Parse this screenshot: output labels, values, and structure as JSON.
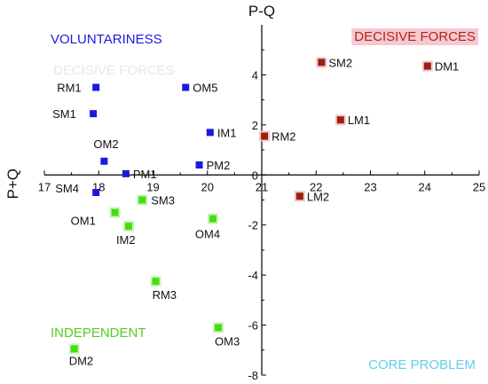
{
  "chart_data": {
    "type": "scatter",
    "xlabel": "P-Q",
    "ylabel": "P+Q",
    "xlim": [
      17,
      25
    ],
    "ylim": [
      -8,
      6
    ],
    "xticks": [
      17,
      18,
      19,
      20,
      21,
      22,
      23,
      24,
      25
    ],
    "yticks": [
      -8,
      -6,
      -4,
      -2,
      0,
      2,
      4
    ],
    "origin": [
      21,
      0
    ],
    "grid": false,
    "quadrants": [
      {
        "label": "VOLUNTARINESS",
        "position": "top-left",
        "color": "#1a1adc",
        "background": "#ffffff"
      },
      {
        "label": "DECISIVE FORCES",
        "position": "top-right",
        "color": "#b02418",
        "background": "#f6c8cf"
      },
      {
        "label": "INDEPENDENT",
        "position": "bottom-left",
        "color": "#55cc22",
        "background": "#ffffff"
      },
      {
        "label": "CORE PROBLEM",
        "position": "bottom-right",
        "color": "#60d0ee",
        "background": "#ffffff"
      }
    ],
    "series": [
      {
        "name": "VOLUNTARINESS",
        "color": "#1a1adc",
        "points": [
          {
            "label": "RM1",
            "x": 17.95,
            "y": 3.5
          },
          {
            "label": "OM5",
            "x": 19.6,
            "y": 3.5
          },
          {
            "label": "SM1",
            "x": 17.9,
            "y": 2.45
          },
          {
            "label": "IM1",
            "x": 20.05,
            "y": 1.7
          },
          {
            "label": "OM2",
            "x": 18.1,
            "y": 0.55
          },
          {
            "label": "PM1",
            "x": 18.5,
            "y": 0.05
          },
          {
            "label": "PM2",
            "x": 19.85,
            "y": 0.4
          },
          {
            "label": "SM4",
            "x": 17.95,
            "y": -0.7
          }
        ]
      },
      {
        "name": "DECISIVE FORCES",
        "color": "#992010",
        "points": [
          {
            "label": "SM2",
            "x": 22.1,
            "y": 4.5
          },
          {
            "label": "DM1",
            "x": 24.05,
            "y": 4.35
          },
          {
            "label": "LM1",
            "x": 22.45,
            "y": 2.2
          },
          {
            "label": "RM2",
            "x": 21.05,
            "y": 1.55
          },
          {
            "label": "LM2",
            "x": 21.7,
            "y": -0.85
          }
        ]
      },
      {
        "name": "INDEPENDENT",
        "color": "#44dd11",
        "points": [
          {
            "label": "OM1",
            "x": 18.3,
            "y": -1.5
          },
          {
            "label": "SM3",
            "x": 18.8,
            "y": -1.0
          },
          {
            "label": "IM2",
            "x": 18.55,
            "y": -2.05
          },
          {
            "label": "OM4",
            "x": 20.1,
            "y": -1.75
          },
          {
            "label": "RM3",
            "x": 19.05,
            "y": -4.25
          },
          {
            "label": "OM3",
            "x": 20.2,
            "y": -6.1
          },
          {
            "label": "DM2",
            "x": 17.55,
            "y": -6.95
          }
        ]
      }
    ],
    "background_text": "DECISIVE FORCES"
  }
}
